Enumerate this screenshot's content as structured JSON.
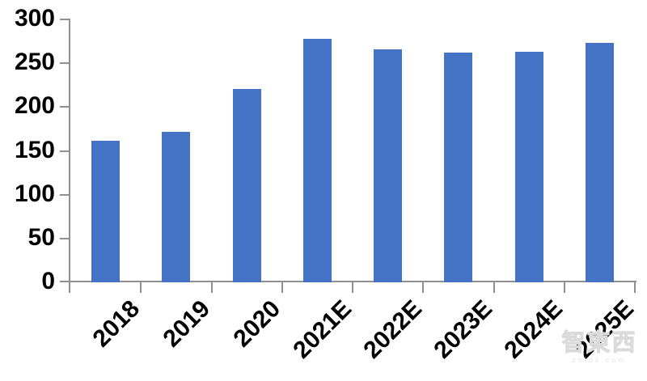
{
  "chart_data": {
    "type": "bar",
    "title": "",
    "xlabel": "",
    "ylabel": "",
    "categories": [
      "2018",
      "2019",
      "2020",
      "2021E",
      "2022E",
      "2023E",
      "2024E",
      "2025E"
    ],
    "values": [
      162,
      172,
      221,
      278,
      266,
      262,
      263,
      273
    ],
    "ylim": [
      0,
      300
    ],
    "yticks": [
      0,
      50,
      100,
      150,
      200,
      250,
      300
    ],
    "grid": false,
    "legend": null,
    "bar_color": "#4472c4",
    "axis_color": "#909090",
    "text_color": "#000000"
  },
  "watermark": {
    "logo_text": "智東西",
    "site_text": "zhidx.com"
  }
}
